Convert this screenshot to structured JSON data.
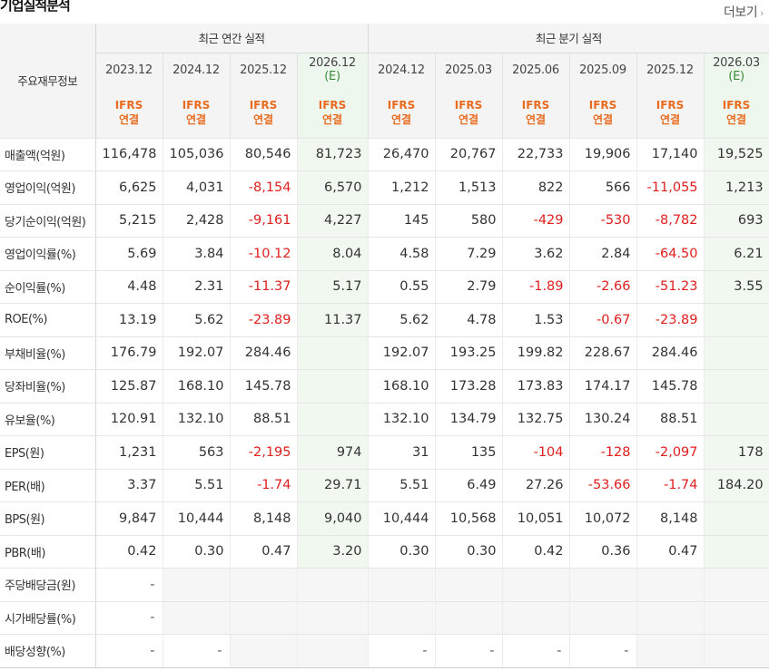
{
  "header": {
    "title": "기업실적분석",
    "more_label": "더보기",
    "more_icon": "chevron-right-icon"
  },
  "table": {
    "row_header_label": "주요재무정보",
    "annual_group_label": "최근 연간 실적",
    "quarter_group_label": "최근 분기 실적",
    "annual_periods": [
      "2023.12",
      "2024.12",
      "2025.12",
      "2026.12"
    ],
    "annual_estimate_mark": "(E)",
    "quarter_periods": [
      "2024.12",
      "2025.03",
      "2025.06",
      "2025.09",
      "2025.12",
      "2026.03"
    ],
    "quarter_estimate_mark": "(E)",
    "accounting_line1": "IFRS",
    "accounting_line2": "연결",
    "colors": {
      "negative": "#e01e1e",
      "accounting_label": "#e86b1f",
      "estimate_bg": "#f0f8f0",
      "estimate_mark": "#3a8a3a"
    },
    "rows": [
      {
        "label": "매출액(억원)",
        "values": [
          "116,478",
          "105,036",
          "80,546",
          "81,723",
          "26,470",
          "20,767",
          "22,733",
          "19,906",
          "17,140",
          "19,525"
        ]
      },
      {
        "label": "영업이익(억원)",
        "values": [
          "6,625",
          "4,031",
          "-8,154",
          "6,570",
          "1,212",
          "1,513",
          "822",
          "566",
          "-11,055",
          "1,213"
        ]
      },
      {
        "label": "당기순이익(억원)",
        "values": [
          "5,215",
          "2,428",
          "-9,161",
          "4,227",
          "145",
          "580",
          "-429",
          "-530",
          "-8,782",
          "693"
        ]
      },
      {
        "label": "영업이익률(%)",
        "values": [
          "5.69",
          "3.84",
          "-10.12",
          "8.04",
          "4.58",
          "7.29",
          "3.62",
          "2.84",
          "-64.50",
          "6.21"
        ]
      },
      {
        "label": "순이익률(%)",
        "values": [
          "4.48",
          "2.31",
          "-11.37",
          "5.17",
          "0.55",
          "2.79",
          "-1.89",
          "-2.66",
          "-51.23",
          "3.55"
        ]
      },
      {
        "label": "ROE(%)",
        "values": [
          "13.19",
          "5.62",
          "-23.89",
          "11.37",
          "5.62",
          "4.78",
          "1.53",
          "-0.67",
          "-23.89",
          ""
        ]
      },
      {
        "label": "부채비율(%)",
        "values": [
          "176.79",
          "192.07",
          "284.46",
          "",
          "192.07",
          "193.25",
          "199.82",
          "228.67",
          "284.46",
          ""
        ]
      },
      {
        "label": "당좌비율(%)",
        "values": [
          "125.87",
          "168.10",
          "145.78",
          "",
          "168.10",
          "173.28",
          "173.83",
          "174.17",
          "145.78",
          ""
        ]
      },
      {
        "label": "유보율(%)",
        "values": [
          "120.91",
          "132.10",
          "88.51",
          "",
          "132.10",
          "134.79",
          "132.75",
          "130.24",
          "88.51",
          ""
        ]
      },
      {
        "label": "EPS(원)",
        "values": [
          "1,231",
          "563",
          "-2,195",
          "974",
          "31",
          "135",
          "-104",
          "-128",
          "-2,097",
          "178"
        ]
      },
      {
        "label": "PER(배)",
        "values": [
          "3.37",
          "5.51",
          "-1.74",
          "29.71",
          "5.51",
          "6.49",
          "27.26",
          "-53.66",
          "-1.74",
          "184.20"
        ]
      },
      {
        "label": "BPS(원)",
        "values": [
          "9,847",
          "10,444",
          "8,148",
          "9,040",
          "10,444",
          "10,568",
          "10,051",
          "10,072",
          "8,148",
          ""
        ]
      },
      {
        "label": "PBR(배)",
        "values": [
          "0.42",
          "0.30",
          "0.47",
          "3.20",
          "0.30",
          "0.30",
          "0.42",
          "0.36",
          "0.47",
          ""
        ]
      },
      {
        "label": "주당배당금(원)",
        "values": [
          "-",
          "",
          "",
          "",
          "",
          "",
          "",
          "",
          "",
          ""
        ]
      },
      {
        "label": "시가배당률(%)",
        "values": [
          "-",
          "",
          "",
          "",
          "",
          "",
          "",
          "",
          "",
          ""
        ]
      },
      {
        "label": "배당성향(%)",
        "values": [
          "-",
          "-",
          "",
          "",
          "-",
          "-",
          "-",
          "-",
          "",
          ""
        ]
      }
    ]
  }
}
